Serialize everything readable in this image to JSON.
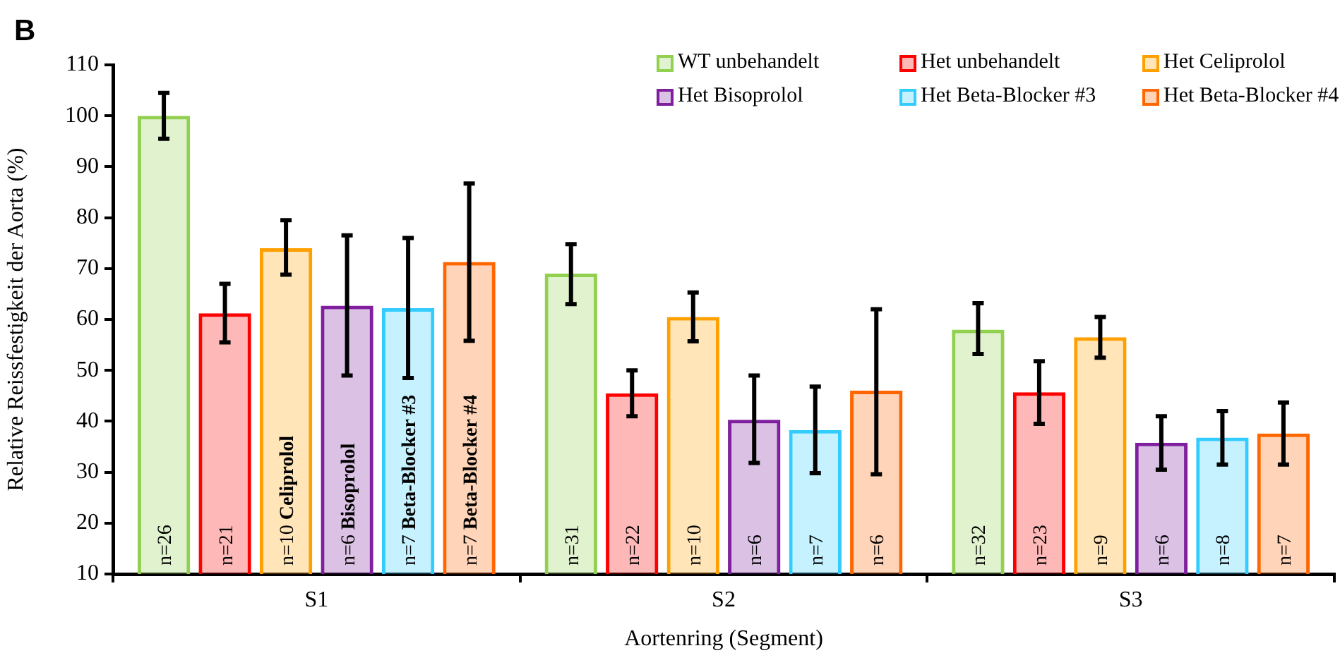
{
  "chart_data": {
    "type": "bar",
    "title": "B",
    "xlabel": "Aortenring (Segment)",
    "ylabel": "Relative Reissfestigkeit der Aorta (%)",
    "categories": [
      "S1",
      "S2",
      "S3"
    ],
    "ylim": [
      10,
      110
    ],
    "yticks": [
      10,
      20,
      30,
      40,
      50,
      60,
      70,
      80,
      90,
      100,
      110
    ],
    "grid": false,
    "legend": "top right",
    "annotations": [
      "n=26",
      "n=21",
      "n=10 Celiprolol",
      "n=6 Bisoprolol",
      "n=7 Beta-Blocker #3",
      "n=7 Beta-Blocker #4",
      "n=31",
      "n=22",
      "n=10",
      "n=6",
      "n=7",
      "n=6",
      "n=32",
      "n=23",
      "n=9",
      "n=6",
      "n=8",
      "n=7"
    ],
    "series": [
      {
        "name": "WT unbehandelt",
        "color": "#92d050",
        "values": [
          100,
          69,
          58
        ],
        "errors": [
          [
            95.5,
            104.5
          ],
          [
            63,
            74.8
          ],
          [
            53.2,
            63.2
          ]
        ]
      },
      {
        "name": "Het unbehandelt",
        "color": "#ff0000",
        "values": [
          61.2,
          45.5,
          45.7
        ],
        "errors": [
          [
            55.5,
            67
          ],
          [
            41,
            50
          ],
          [
            39.5,
            51.8
          ]
        ]
      },
      {
        "name": "Het Celiprolol",
        "color": "#ffa000",
        "values": [
          74,
          60.5,
          56.5
        ],
        "errors": [
          [
            68.8,
            79.5
          ],
          [
            55.7,
            65.3
          ],
          [
            52.5,
            60.5
          ]
        ]
      },
      {
        "name": "Het Bisoprolol",
        "color": "#7f1f9f",
        "values": [
          62.7,
          40.3,
          35.8
        ],
        "errors": [
          [
            49,
            76.5
          ],
          [
            31.8,
            49
          ],
          [
            30.5,
            41
          ]
        ]
      },
      {
        "name": "Het Beta-Blocker #3",
        "color": "#33ccff",
        "values": [
          62.2,
          38.3,
          36.8
        ],
        "errors": [
          [
            48.5,
            76
          ],
          [
            29.8,
            46.8
          ],
          [
            31.5,
            42
          ]
        ]
      },
      {
        "name": "Het Beta-Blocker #4",
        "color": "#ff6600",
        "values": [
          71.3,
          46,
          37.6
        ],
        "errors": [
          [
            55.8,
            86.7
          ],
          [
            29.6,
            62
          ],
          [
            31.5,
            43.7
          ]
        ]
      }
    ]
  }
}
